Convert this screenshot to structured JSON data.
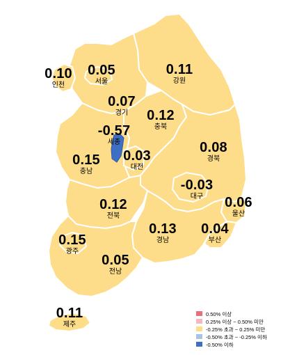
{
  "regions": {
    "incheon": {
      "value": "0.10",
      "name": "인천"
    },
    "seoul": {
      "value": "0.05",
      "name": "서울"
    },
    "gangwon": {
      "value": "0.11",
      "name": "강원"
    },
    "gyeonggi": {
      "value": "0.07",
      "name": "경기"
    },
    "chungbuk": {
      "value": "0.12",
      "name": "충북"
    },
    "sejong": {
      "value": "-0.57",
      "name": "세종"
    },
    "daejeon": {
      "value": "0.03",
      "name": "대전"
    },
    "gyeongbuk": {
      "value": "0.08",
      "name": "경북"
    },
    "chungnam": {
      "value": "0.15",
      "name": "충남"
    },
    "daegu": {
      "value": "-0.03",
      "name": "대구"
    },
    "ulsan": {
      "value": "0.06",
      "name": "울산"
    },
    "jeonbuk": {
      "value": "0.12",
      "name": "전북"
    },
    "gyeongnam": {
      "value": "0.13",
      "name": "경남"
    },
    "busan": {
      "value": "0.04",
      "name": "부산"
    },
    "gwangju": {
      "value": "0.15",
      "name": "광주"
    },
    "jeonnam": {
      "value": "0.05",
      "name": "전남"
    },
    "jeju": {
      "value": "0.11",
      "name": "제주"
    }
  },
  "legend": [
    {
      "label": "0.50% 이상",
      "color": "#E8707A"
    },
    {
      "label": "0.25% 이상 ~ 0.50% 미만",
      "color": "#F4B8BE"
    },
    {
      "label": "-0.25% 초과 ~ 0.25% 미만",
      "color": "#FDDC8A"
    },
    {
      "label": "-0.50% 초과 ~ -0.25% 이하",
      "color": "#A9C3E8"
    },
    {
      "label": "-0.50% 이하",
      "color": "#3F6FC4"
    }
  ]
}
